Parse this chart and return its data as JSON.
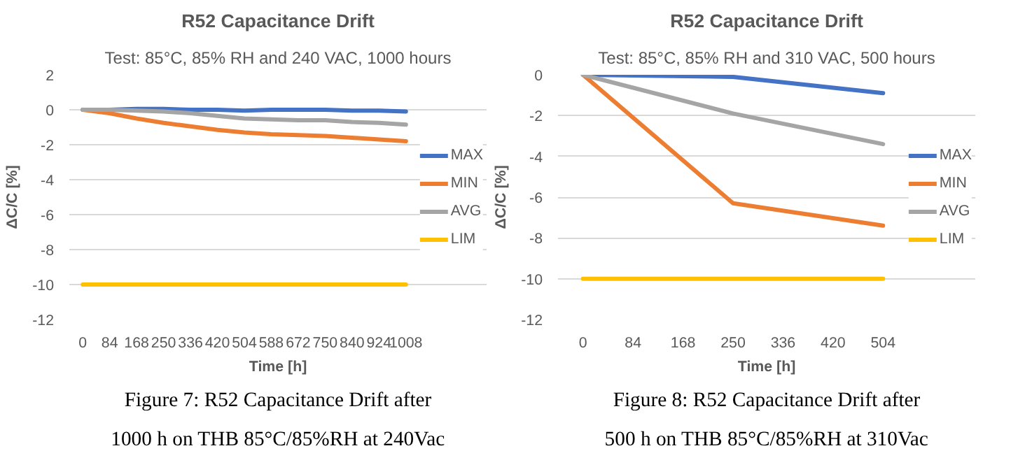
{
  "chart_data": [
    {
      "type": "line",
      "title": "R52 Capacitance Drift",
      "subtitle": "Test: 85°C, 85% RH and 240 VAC, 1000 hours",
      "xlabel": "Time [h]",
      "ylabel": "ΔC/C [%]",
      "categories": [
        "0",
        "84",
        "168",
        "250",
        "336",
        "420",
        "504",
        "588",
        "672",
        "750",
        "840",
        "924",
        "1008"
      ],
      "series": [
        {
          "name": "MAX",
          "color": "#4472c4",
          "values": [
            0,
            0,
            0.05,
            0.05,
            0,
            0,
            -0.05,
            0,
            0,
            0,
            -0.05,
            -0.05,
            -0.1
          ]
        },
        {
          "name": "MIN",
          "color": "#ed7d31",
          "values": [
            0,
            -0.2,
            -0.5,
            -0.75,
            -0.95,
            -1.15,
            -1.3,
            -1.4,
            -1.45,
            -1.5,
            -1.6,
            -1.7,
            -1.8
          ]
        },
        {
          "name": "AVG",
          "color": "#a5a5a5",
          "values": [
            0,
            0,
            -0.05,
            -0.1,
            -0.2,
            -0.35,
            -0.5,
            -0.55,
            -0.6,
            -0.6,
            -0.7,
            -0.75,
            -0.85
          ]
        },
        {
          "name": "LIM",
          "color": "#ffc000",
          "values": [
            -10,
            -10,
            -10,
            -10,
            -10,
            -10,
            -10,
            -10,
            -10,
            -10,
            -10,
            -10,
            -10
          ]
        }
      ],
      "ylim": [
        -12,
        2
      ],
      "yticks": [
        -12,
        -10,
        -8,
        -6,
        -4,
        -2,
        0,
        2
      ],
      "grid": "y",
      "legend": "right",
      "annotations": [
        "Figure 7: R52 Capacitance Drift after 1000 h on THB 85°C/85%RH at 240Vac"
      ]
    },
    {
      "type": "line",
      "title": "R52 Capacitance Drift",
      "subtitle": "Test: 85°C, 85% RH and 310 VAC, 500 hours",
      "xlabel": "Time [h]",
      "ylabel": "ΔC/C [%]",
      "categories": [
        "0",
        "84",
        "168",
        "250",
        "336",
        "420",
        "504"
      ],
      "series": [
        {
          "name": "MAX",
          "color": "#4472c4",
          "values": [
            0,
            null,
            null,
            -0.1,
            null,
            null,
            -0.9
          ]
        },
        {
          "name": "MIN",
          "color": "#ed7d31",
          "values": [
            0,
            null,
            null,
            -6.3,
            null,
            null,
            -7.4
          ]
        },
        {
          "name": "AVG",
          "color": "#a5a5a5",
          "values": [
            0,
            null,
            null,
            -1.9,
            null,
            null,
            -3.4
          ]
        },
        {
          "name": "LIM",
          "color": "#ffc000",
          "values": [
            -10,
            -10,
            -10,
            -10,
            -10,
            -10,
            -10
          ]
        }
      ],
      "ylim": [
        -12,
        0
      ],
      "yticks": [
        -12,
        -10,
        -8,
        -6,
        -4,
        -2,
        0
      ],
      "grid": "y",
      "legend": "right",
      "annotations": [
        "Figure 8: R52 Capacitance Drift after 500 h on THB 85°C/85%RH at 310Vac"
      ]
    }
  ]
}
